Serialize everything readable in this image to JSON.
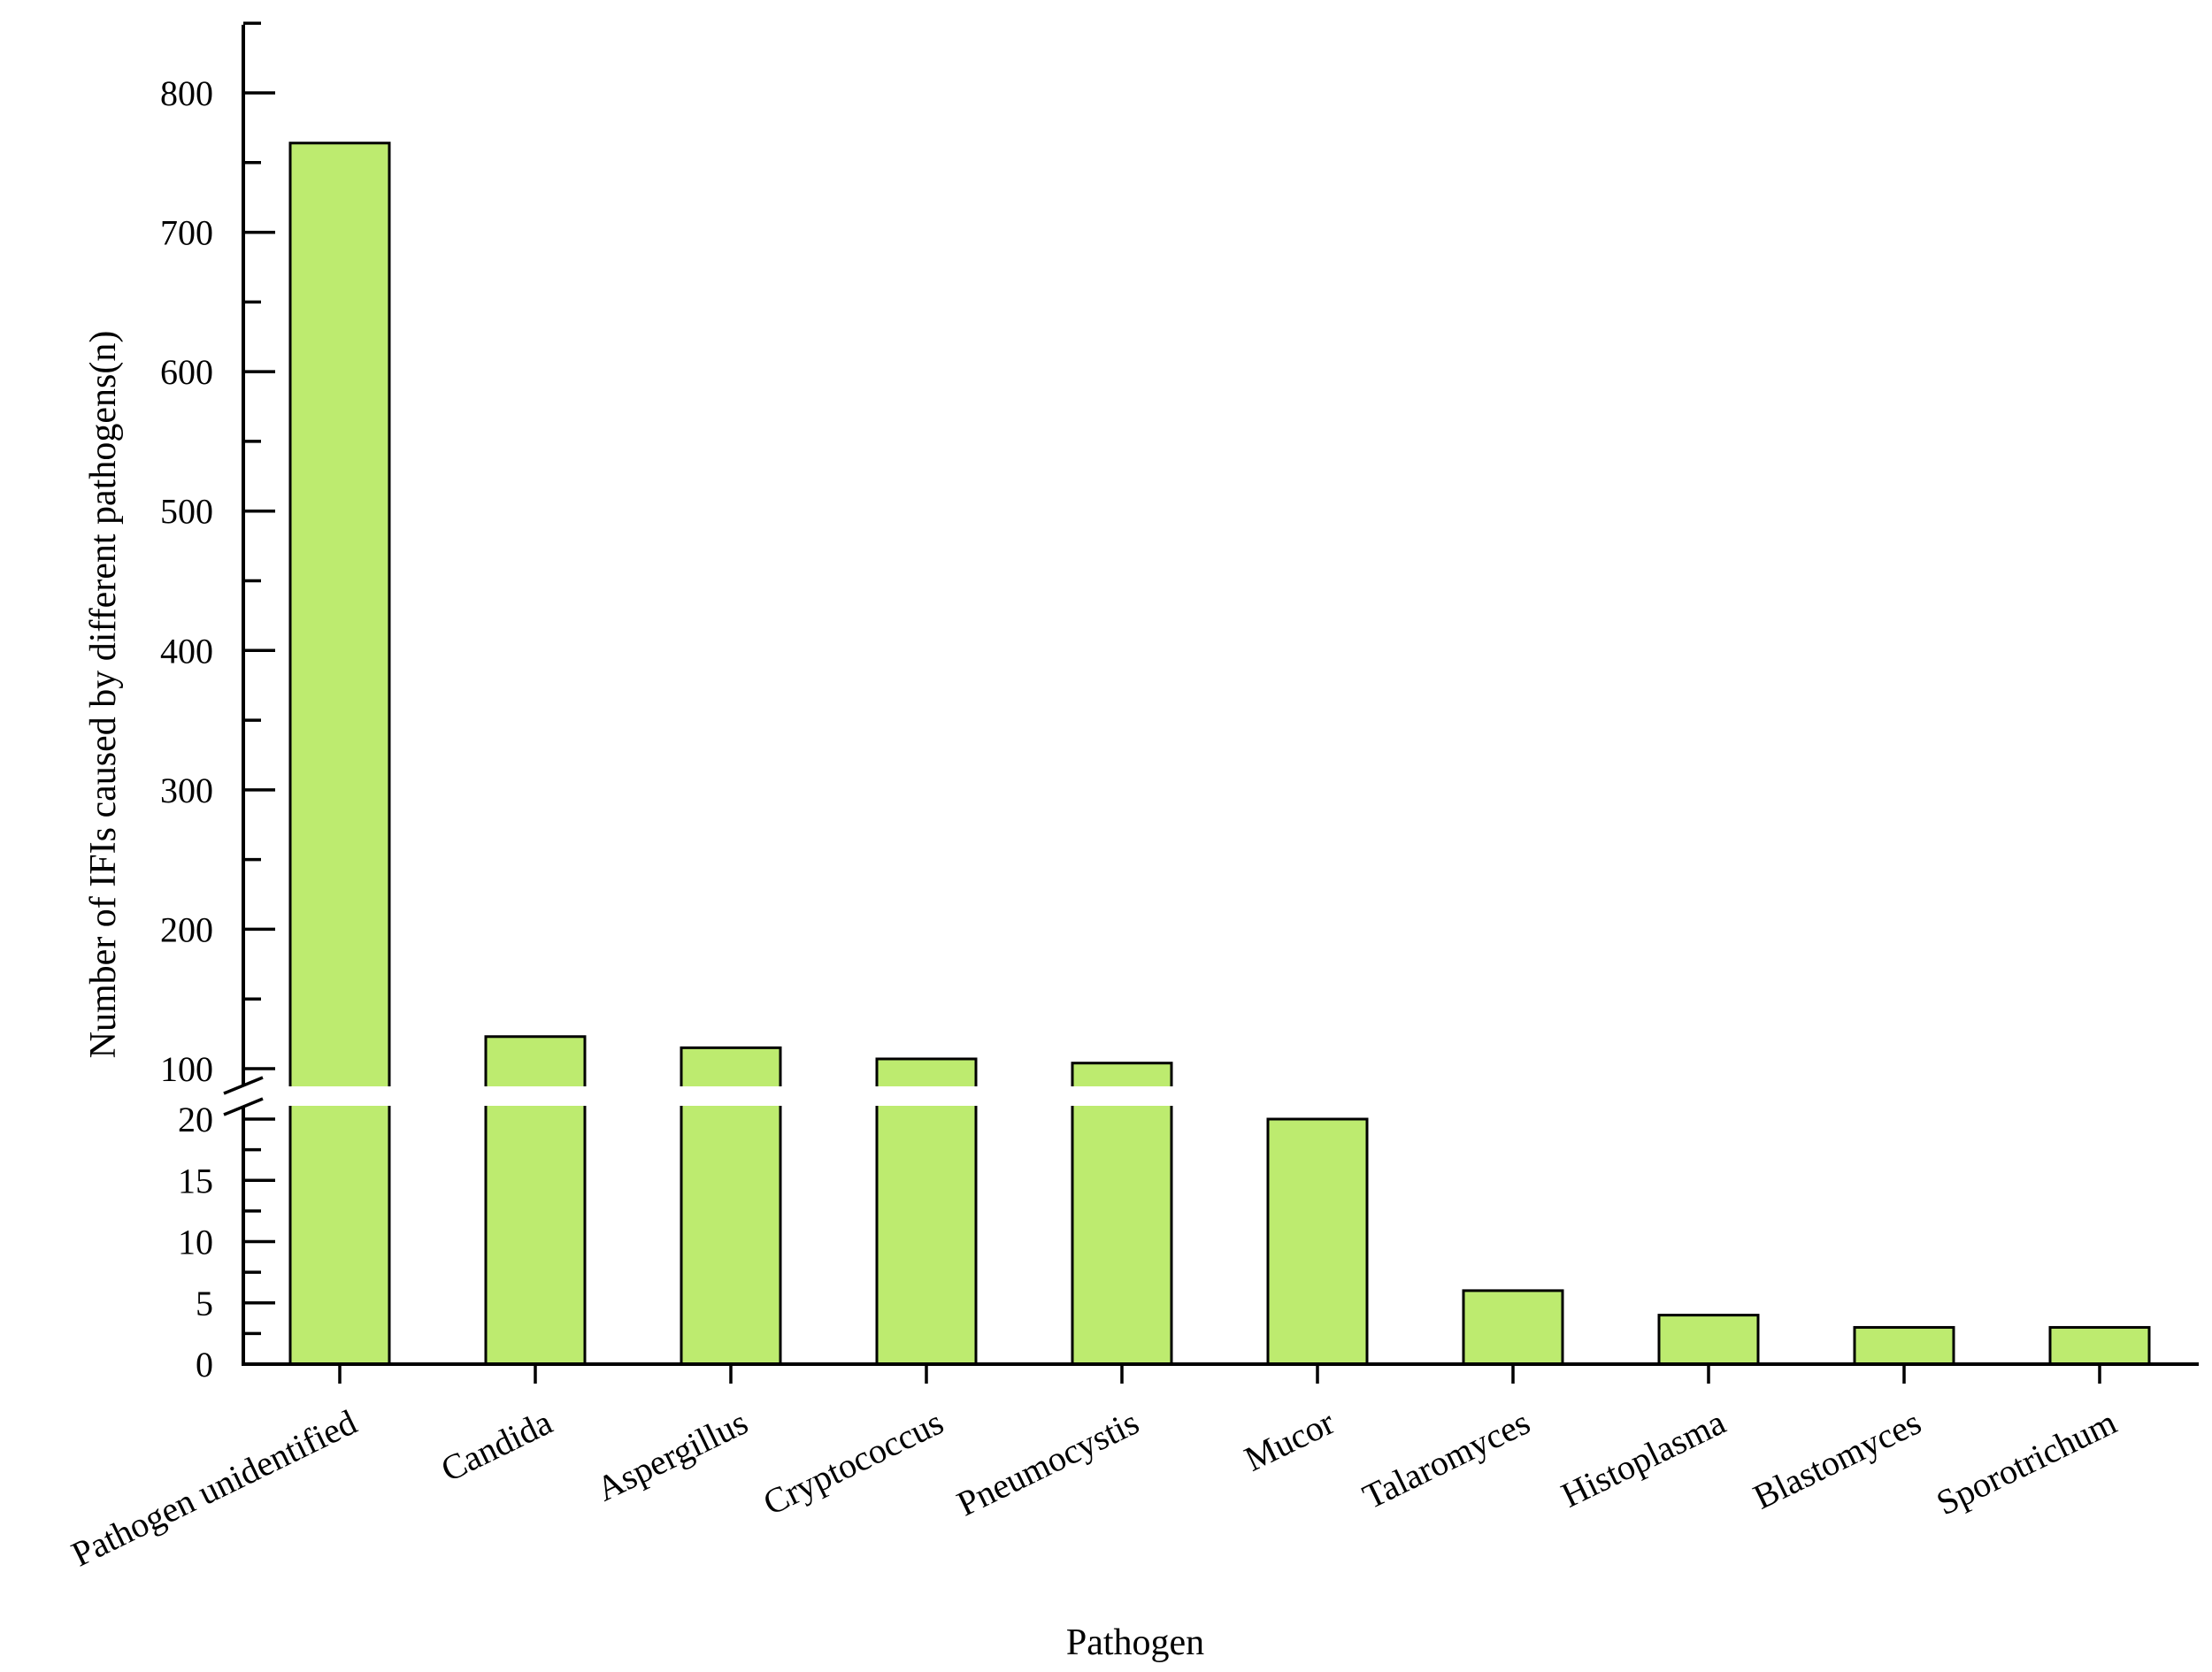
{
  "chart_data": {
    "type": "bar",
    "xlabel": "Pathogen",
    "ylabel": "Number of IFIs caused by different pathogens(n)",
    "categories": [
      "Pathogen unidentified",
      "Candida",
      "Aspergillus",
      "Cryptococcus",
      "Pneumocystis",
      "Mucor",
      "Talaromyces",
      "Histoplasma",
      "Blastomyces",
      "Sporotrichum"
    ],
    "values": [
      764,
      123,
      115,
      107,
      104,
      20,
      6,
      4,
      3,
      3
    ],
    "bar_color": "#bdeb6f",
    "broken_y_axis": true,
    "lower_segment": {
      "ylim": [
        0,
        22
      ],
      "ticks": [
        0,
        5,
        10,
        15,
        20
      ]
    },
    "upper_segment": {
      "ylim": [
        90,
        850
      ],
      "ticks": [
        100,
        200,
        300,
        400,
        500,
        600,
        700,
        800
      ]
    },
    "grid": false,
    "legend": "none"
  }
}
